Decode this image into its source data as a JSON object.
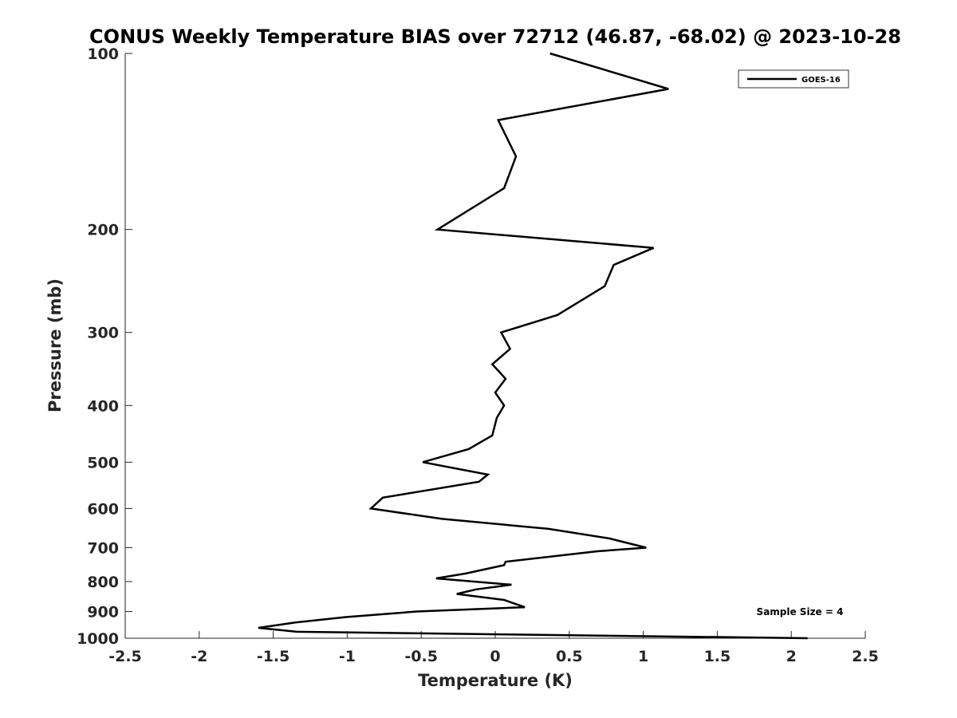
{
  "chart_data": {
    "type": "line",
    "title": "CONUS Weekly Temperature BIAS over 72712 (46.87, -68.02) @ 2023-10-28",
    "xlabel": "Temperature (K)",
    "ylabel": "Pressure (mb)",
    "xlim": [
      -2.5,
      2.5
    ],
    "ylim": [
      100,
      1000
    ],
    "y_scale": "log",
    "y_reversed": true,
    "x_ticks": [
      "-2.5",
      "-2",
      "-1.5",
      "-1",
      "-0.5",
      "0",
      "0.5",
      "1",
      "1.5",
      "2",
      "2.5"
    ],
    "y_ticks": [
      "100",
      "200",
      "300",
      "400",
      "500",
      "600",
      "700",
      "800",
      "900",
      "1000"
    ],
    "grid": false,
    "legend_position": "top-right",
    "annotation": "Sample Size = 4",
    "series": [
      {
        "name": "GOES-16",
        "color": "#000000",
        "points": [
          {
            "x": 0.37,
            "p": 100
          },
          {
            "x": 1.17,
            "p": 115
          },
          {
            "x": 0.02,
            "p": 130
          },
          {
            "x": 0.14,
            "p": 150
          },
          {
            "x": 0.06,
            "p": 170
          },
          {
            "x": -0.39,
            "p": 200
          },
          {
            "x": 1.07,
            "p": 215
          },
          {
            "x": 0.8,
            "p": 230
          },
          {
            "x": 0.74,
            "p": 250
          },
          {
            "x": 0.42,
            "p": 280
          },
          {
            "x": 0.04,
            "p": 300
          },
          {
            "x": 0.1,
            "p": 320
          },
          {
            "x": -0.02,
            "p": 340
          },
          {
            "x": 0.07,
            "p": 360
          },
          {
            "x": 0.0,
            "p": 380
          },
          {
            "x": 0.06,
            "p": 400
          },
          {
            "x": 0.01,
            "p": 420
          },
          {
            "x": -0.02,
            "p": 450
          },
          {
            "x": -0.18,
            "p": 475
          },
          {
            "x": -0.49,
            "p": 500
          },
          {
            "x": -0.05,
            "p": 525
          },
          {
            "x": -0.11,
            "p": 540
          },
          {
            "x": -0.76,
            "p": 575
          },
          {
            "x": -0.84,
            "p": 600
          },
          {
            "x": -0.36,
            "p": 625
          },
          {
            "x": 0.36,
            "p": 650
          },
          {
            "x": 0.77,
            "p": 675
          },
          {
            "x": 1.02,
            "p": 700
          },
          {
            "x": 0.69,
            "p": 710
          },
          {
            "x": 0.07,
            "p": 740
          },
          {
            "x": 0.06,
            "p": 750
          },
          {
            "x": -0.2,
            "p": 775
          },
          {
            "x": -0.4,
            "p": 790
          },
          {
            "x": 0.11,
            "p": 810
          },
          {
            "x": -0.13,
            "p": 825
          },
          {
            "x": -0.26,
            "p": 840
          },
          {
            "x": 0.06,
            "p": 860
          },
          {
            "x": 0.2,
            "p": 885
          },
          {
            "x": -0.53,
            "p": 900
          },
          {
            "x": -1.01,
            "p": 920
          },
          {
            "x": -1.35,
            "p": 940
          },
          {
            "x": -1.6,
            "p": 960
          },
          {
            "x": -1.34,
            "p": 975
          },
          {
            "x": 2.11,
            "p": 1000
          }
        ]
      }
    ]
  }
}
